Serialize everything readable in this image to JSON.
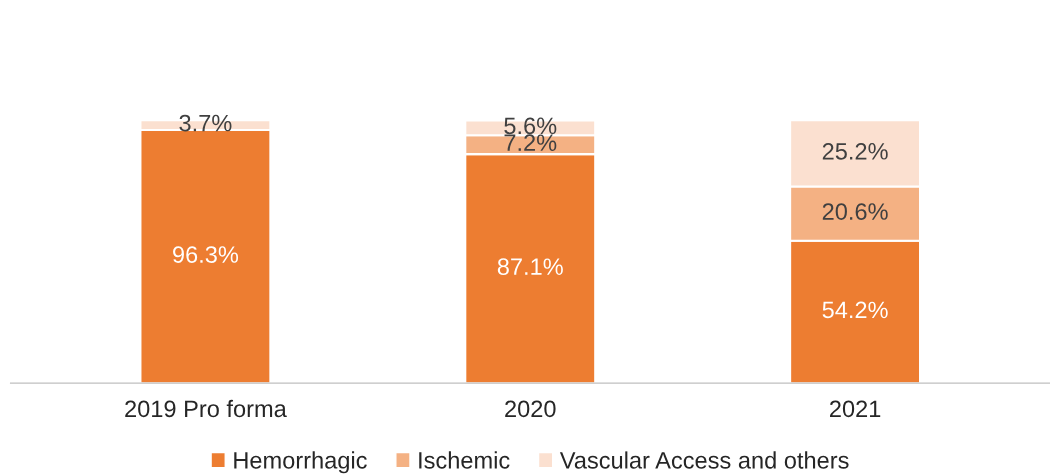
{
  "chart_data": {
    "type": "bar",
    "stacked": true,
    "legend": "bottom",
    "categories": [
      "2019 Pro forma",
      "2020",
      "2021"
    ],
    "series": [
      {
        "name": "Hemorrhagic",
        "color": "#ed7d31",
        "values": [
          96.3,
          87.1,
          54.2
        ],
        "value_labels": [
          "96.3%",
          "87.1%",
          "54.2%"
        ]
      },
      {
        "name": "Ischemic",
        "color": "#f4b183",
        "values": [
          0,
          7.2,
          20.6
        ],
        "value_labels": [
          null,
          "7.2%",
          "20.6%"
        ]
      },
      {
        "name": "Vascular Access and others",
        "color": "#fbe0d0",
        "values": [
          3.7,
          5.6,
          25.2
        ],
        "value_labels": [
          "3.7%",
          "5.6%",
          "25.2%"
        ]
      }
    ]
  }
}
